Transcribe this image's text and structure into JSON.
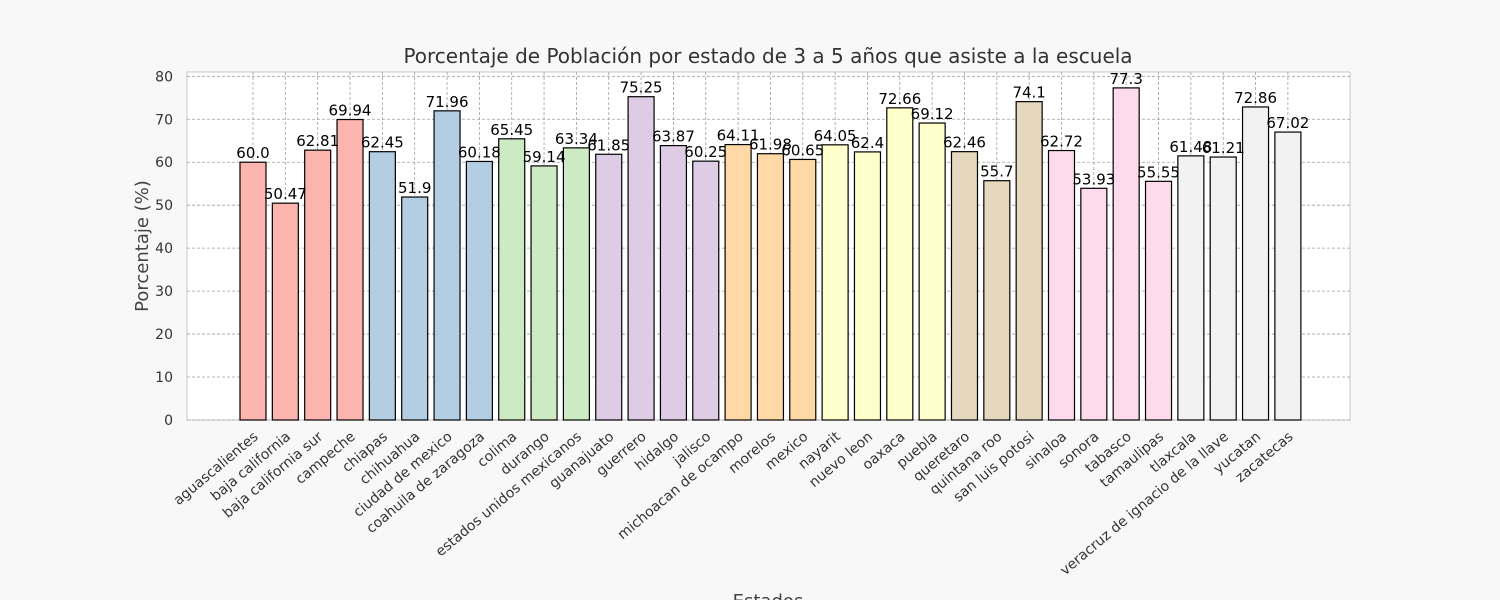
{
  "chart_data": {
    "type": "bar",
    "title": "Porcentaje de Población por estado de 3 a 5 años que asiste a la escuela",
    "xlabel": "Estados",
    "ylabel": "Porcentaje (%)",
    "ylim": [
      0,
      81
    ],
    "yticks": [
      0,
      10,
      20,
      30,
      40,
      50,
      60,
      70,
      80
    ],
    "grid": true,
    "categories": [
      "aguascalientes",
      "baja california",
      "baja california sur",
      "campeche",
      "chiapas",
      "chihuahua",
      "ciudad de mexico",
      "coahuila de zaragoza",
      "colima",
      "durango",
      "estados unidos mexicanos",
      "guanajuato",
      "guerrero",
      "hidalgo",
      "jalisco",
      "michoacan de ocampo",
      "morelos",
      "mexico",
      "nayarit",
      "nuevo leon",
      "oaxaca",
      "puebla",
      "queretaro",
      "quintana roo",
      "san luis potosi",
      "sinaloa",
      "sonora",
      "tabasco",
      "tamaulipas",
      "tlaxcala",
      "veracruz de ignacio de la llave",
      "yucatan",
      "zacatecas"
    ],
    "values": [
      60.0,
      50.47,
      62.81,
      69.94,
      62.45,
      51.9,
      71.96,
      60.18,
      65.45,
      59.14,
      63.34,
      61.85,
      75.25,
      63.87,
      60.25,
      64.11,
      61.98,
      60.65,
      64.05,
      62.4,
      72.66,
      69.12,
      62.46,
      55.7,
      74.1,
      62.72,
      53.93,
      77.3,
      55.55,
      61.48,
      61.21,
      72.86,
      67.02
    ],
    "value_labels": [
      "60.0",
      "50.47",
      "62.81",
      "69.94",
      "62.45",
      "51.9",
      "71.96",
      "60.18",
      "65.45",
      "59.14",
      "63.34",
      "61.85",
      "75.25",
      "63.87",
      "60.25",
      "64.11",
      "61.98",
      "60.65",
      "64.05",
      "62.4",
      "72.66",
      "69.12",
      "62.46",
      "55.7",
      "74.1",
      "62.72",
      "53.93",
      "77.3",
      "55.55",
      "61.48",
      "61.21",
      "72.86",
      "67.02"
    ],
    "colors": [
      "#fbb4ae",
      "#fbb4ae",
      "#fbb4ae",
      "#fbb4ae",
      "#b3cde3",
      "#b3cde3",
      "#b3cde3",
      "#b3cde3",
      "#ccebc5",
      "#ccebc5",
      "#ccebc5",
      "#decbe4",
      "#decbe4",
      "#decbe4",
      "#decbe4",
      "#fed9a6",
      "#fed9a6",
      "#fed9a6",
      "#ffffcc",
      "#ffffcc",
      "#ffffcc",
      "#ffffcc",
      "#e5d8bd",
      "#e5d8bd",
      "#e5d8bd",
      "#fddaec",
      "#fddaec",
      "#fddaec",
      "#fddaec",
      "#f2f2f2",
      "#f2f2f2",
      "#f2f2f2",
      "#f2f2f2"
    ],
    "edge_color": "#000000"
  }
}
